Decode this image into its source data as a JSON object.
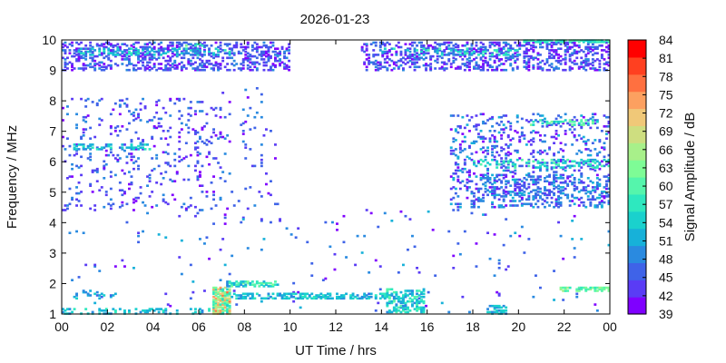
{
  "chart_data": {
    "type": "heatmap",
    "title": "2026-01-23",
    "xlabel": "UT Time / hrs",
    "ylabel": "Frequency / MHz",
    "colorbar_label": "Signal Amplitude / dB",
    "xlim": [
      0,
      24
    ],
    "ylim": [
      1,
      10
    ],
    "x_ticks": [
      "00",
      "02",
      "04",
      "06",
      "08",
      "10",
      "12",
      "14",
      "16",
      "18",
      "20",
      "22",
      "00"
    ],
    "y_ticks": [
      "1",
      "2",
      "3",
      "4",
      "5",
      "6",
      "7",
      "8",
      "9",
      "10"
    ],
    "colorbar_ticks": [
      "39",
      "42",
      "45",
      "48",
      "51",
      "54",
      "57",
      "60",
      "63",
      "66",
      "69",
      "72",
      "75",
      "78",
      "81",
      "84"
    ],
    "colorbar_colors": [
      "#7f00ff",
      "#5a3cf5",
      "#3f63e8",
      "#2a8ae0",
      "#17b1d9",
      "#1ad1cd",
      "#2ee8bf",
      "#55f5ac",
      "#7efc96",
      "#a8f08a",
      "#cede80",
      "#f0c878",
      "#fca060",
      "#ff7040",
      "#ff4020",
      "#ff0000"
    ],
    "grid": false,
    "legend": "colorbar-right",
    "regions": [
      {
        "t": [
          0,
          10
        ],
        "f": [
          9.0,
          9.95
        ],
        "level": [
          39,
          48
        ],
        "density": 0.32
      },
      {
        "t": [
          0.5,
          7.5
        ],
        "f": [
          9.5,
          9.75
        ],
        "level": [
          48,
          57
        ],
        "density": 0.35
      },
      {
        "t": [
          5.2,
          6.2
        ],
        "f": [
          9.8,
          9.9
        ],
        "level": [
          57,
          63
        ],
        "density": 0.5
      },
      {
        "t": [
          13.2,
          24
        ],
        "f": [
          9.0,
          9.95
        ],
        "level": [
          39,
          48
        ],
        "density": 0.32
      },
      {
        "t": [
          14,
          20
        ],
        "f": [
          9.5,
          9.75
        ],
        "level": [
          48,
          60
        ],
        "density": 0.3
      },
      {
        "t": [
          20.2,
          24
        ],
        "f": [
          9.92,
          9.99
        ],
        "level": [
          54,
          60
        ],
        "density": 0.8
      },
      {
        "t": [
          0,
          7
        ],
        "f": [
          4.4,
          8.1
        ],
        "level": [
          39,
          48
        ],
        "density": 0.08
      },
      {
        "t": [
          0.5,
          4
        ],
        "f": [
          6.4,
          6.6
        ],
        "level": [
          48,
          57
        ],
        "density": 0.35
      },
      {
        "t": [
          7,
          9.5
        ],
        "f": [
          4.0,
          8.5
        ],
        "level": [
          39,
          48
        ],
        "density": 0.035
      },
      {
        "t": [
          17,
          24
        ],
        "f": [
          4.5,
          7.6
        ],
        "level": [
          39,
          51
        ],
        "density": 0.16
      },
      {
        "t": [
          18,
          24
        ],
        "f": [
          4.5,
          5.6
        ],
        "level": [
          42,
          51
        ],
        "density": 0.18
      },
      {
        "t": [
          18,
          24
        ],
        "f": [
          5.8,
          6.1
        ],
        "level": [
          51,
          60
        ],
        "density": 0.25
      },
      {
        "t": [
          20.5,
          23.5
        ],
        "f": [
          7.2,
          7.4
        ],
        "level": [
          54,
          63
        ],
        "density": 0.3
      },
      {
        "t": [
          0,
          24
        ],
        "f": [
          1.0,
          4.5
        ],
        "level": [
          39,
          51
        ],
        "density": 0.012
      },
      {
        "t": [
          6.6,
          7.4
        ],
        "f": [
          1.0,
          1.9
        ],
        "level": [
          54,
          78
        ],
        "density": 0.75
      },
      {
        "t": [
          7.2,
          9.5
        ],
        "f": [
          1.9,
          2.1
        ],
        "level": [
          48,
          63
        ],
        "density": 0.55
      },
      {
        "t": [
          7.2,
          15.4
        ],
        "f": [
          1.5,
          1.7
        ],
        "level": [
          48,
          57
        ],
        "density": 0.5
      },
      {
        "t": [
          14.2,
          15.9
        ],
        "f": [
          1.05,
          1.85
        ],
        "level": [
          48,
          60
        ],
        "density": 0.45
      },
      {
        "t": [
          0,
          6.5
        ],
        "f": [
          1.0,
          1.2
        ],
        "level": [
          48,
          57
        ],
        "density": 0.3
      },
      {
        "t": [
          18.6,
          19.5
        ],
        "f": [
          1.0,
          1.3
        ],
        "level": [
          48,
          57
        ],
        "density": 0.55
      },
      {
        "t": [
          0.5,
          2.5
        ],
        "f": [
          1.5,
          1.8
        ],
        "level": [
          45,
          54
        ],
        "density": 0.2
      },
      {
        "t": [
          21.8,
          24
        ],
        "f": [
          1.75,
          1.9
        ],
        "level": [
          57,
          66
        ],
        "density": 0.6
      },
      {
        "t": [
          10.5,
          13
        ],
        "f": [
          5.8,
          6.0
        ],
        "level": [
          66,
          72
        ],
        "density": 0.015
      },
      {
        "t": [
          13.1,
          13.3
        ],
        "f": [
          9.65,
          9.8
        ],
        "level": [
          39,
          48
        ],
        "density": 0.5
      }
    ]
  }
}
